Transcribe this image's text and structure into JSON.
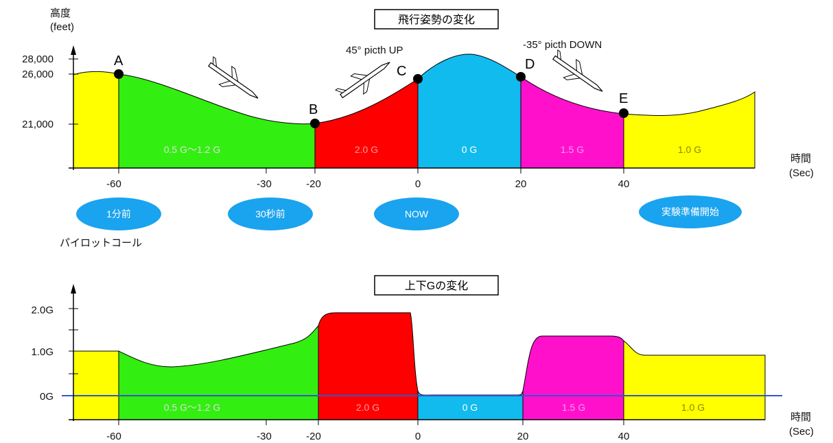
{
  "top": {
    "title": "飛行姿勢の変化",
    "y_axis_title": [
      "高度",
      "(feet)"
    ],
    "y_ticks": [
      "28,000",
      "26,000",
      "21,000"
    ],
    "x_ticks": [
      "-60",
      "-30",
      "-20",
      "0",
      "20",
      "40"
    ],
    "x_axis_title": [
      "時間",
      "(Sec)"
    ],
    "points": [
      "A",
      "B",
      "C",
      "D",
      "E"
    ],
    "pitch_up": "45°  picth UP",
    "pitch_down": "-35°  picth DOWN",
    "zones": [
      "0.5 G〜1.2 G",
      "2.0 G",
      "0 G",
      "1.5 G",
      "1.0 G"
    ],
    "events": [
      "1分前",
      "30秒前",
      "NOW",
      "実験準備開始"
    ],
    "pilot_call": "パイロットコール"
  },
  "bottom": {
    "title": "上下Gの変化",
    "y_ticks": [
      "2.0G",
      "1.0G",
      "0G"
    ],
    "x_ticks": [
      "-60",
      "-30",
      "-20",
      "0",
      "20",
      "40"
    ],
    "x_axis_title": [
      "時間",
      "(Sec)"
    ],
    "zones": [
      "0.5 G〜1.2 G",
      "2.0 G",
      "0 G",
      "1.5 G",
      "1.0 G"
    ]
  },
  "colors": {
    "yellow": "#ffff00",
    "green": "#33ee11",
    "red": "#ff0000",
    "cyan": "#11bbee",
    "magenta": "#ff11cc",
    "oval": "#1aa3ee",
    "zero_line": "#3355cc"
  }
}
